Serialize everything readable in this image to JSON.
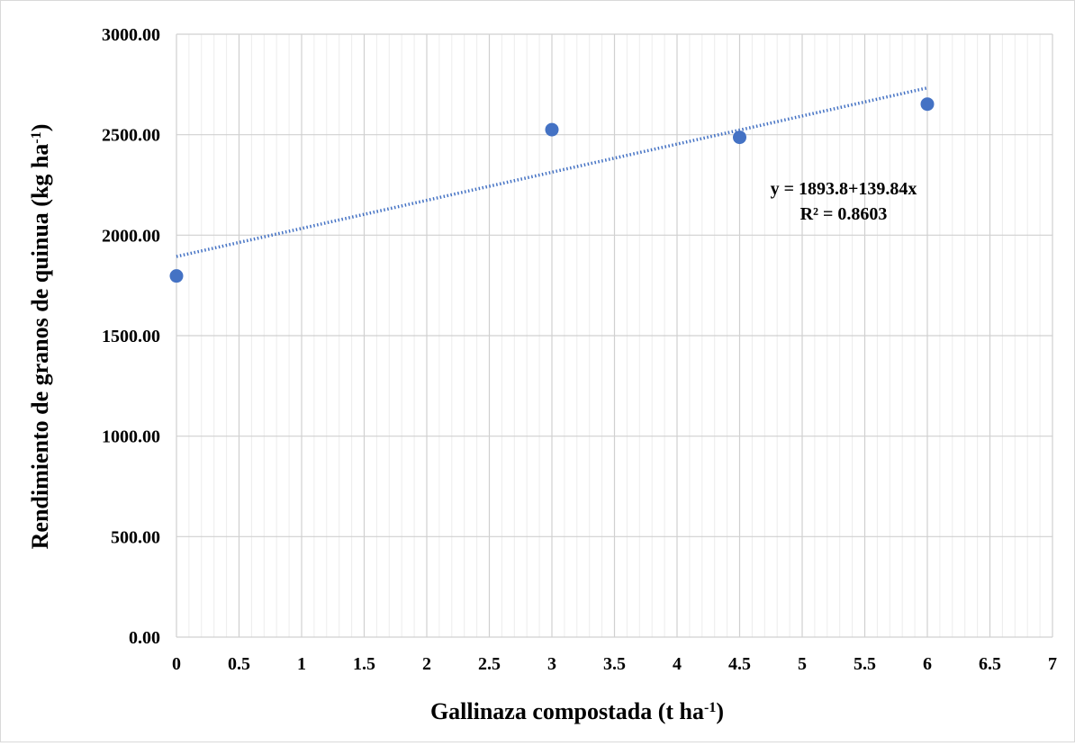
{
  "chart_data": {
    "type": "scatter",
    "title": "",
    "xlabel": {
      "main": "Gallinaza compostada (t ha",
      "sup": "-1",
      "end": ")"
    },
    "ylabel": {
      "main": "Rendimiento de granos de quinua (kg ha",
      "sup": "-1",
      "end": ")"
    },
    "xlim": [
      0,
      7
    ],
    "ylim": [
      0,
      3000
    ],
    "x_ticks": [
      "0",
      "0.5",
      "1",
      "1.5",
      "2",
      "2.5",
      "3",
      "3.5",
      "4",
      "4.5",
      "5",
      "5.5",
      "6",
      "6.5",
      "7"
    ],
    "y_ticks": [
      "0.00",
      "500.00",
      "1000.00",
      "1500.00",
      "2000.00",
      "2500.00",
      "3000.00"
    ],
    "grid": true,
    "legend": "none",
    "series": [
      {
        "color": "#4472c4",
        "points": [
          {
            "x": 0,
            "y": 1797
          },
          {
            "x": 3,
            "y": 2525
          },
          {
            "x": 4.5,
            "y": 2487
          },
          {
            "x": 6,
            "y": 2652
          }
        ]
      }
    ],
    "trendline": {
      "type": "linear",
      "intercept": 1893.8,
      "slope": 139.84,
      "x_range": [
        0,
        6
      ],
      "style": "dotted",
      "color": "#4472c4",
      "equation_label": "y = 1893.8+139.84x",
      "r2_label": "R² = 0.8603"
    }
  }
}
